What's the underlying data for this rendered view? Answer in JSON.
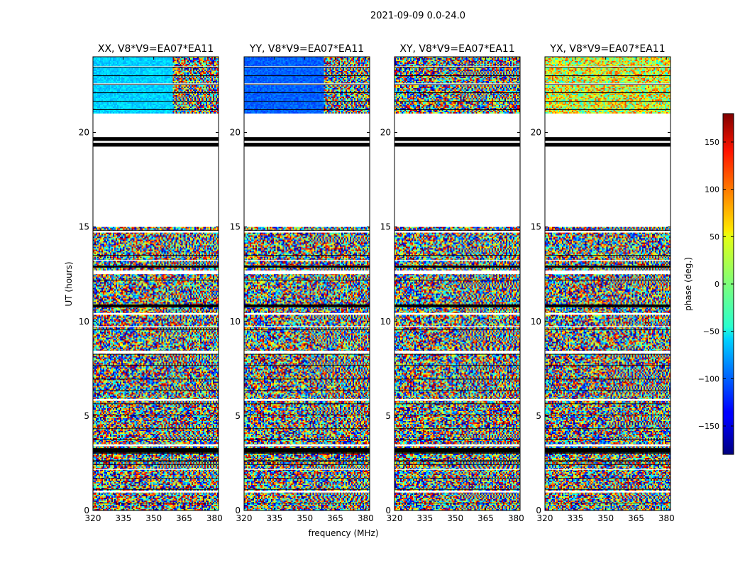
{
  "chart_data": {
    "type": "heatmap",
    "suptitle": "2021-09-09 0.0-24.0",
    "xlabel": "frequency (MHz)",
    "ylabel": "UT (hours)",
    "xlim": [
      320,
      382
    ],
    "ylim": [
      0,
      24
    ],
    "xticks": [
      320,
      335,
      350,
      365,
      380
    ],
    "yticks": [
      0,
      5,
      10,
      15,
      20
    ],
    "panels": [
      {
        "title": "XX, V8*V9=EA07*EA11",
        "pol": "XX"
      },
      {
        "title": "YY, V8*V9=EA07*EA11",
        "pol": "YY"
      },
      {
        "title": "XY, V8*V9=EA07*EA11",
        "pol": "XY"
      },
      {
        "title": "YX, V8*V9=EA07*EA11",
        "pol": "YX"
      }
    ],
    "colorbar": {
      "label": "phase (deg.)",
      "min": -180,
      "max": 180,
      "ticks": [
        150,
        100,
        50,
        0,
        -50,
        -100,
        -150
      ],
      "tick_labels": [
        "150",
        "100",
        "50",
        "0",
        "−50",
        "−100",
        "−150"
      ],
      "colormap": "jet"
    },
    "flagged_ut_hours": [
      [
        15.0,
        21.0
      ],
      [
        19.2,
        19.8
      ]
    ],
    "solid_bands_ut_hours": [
      [
        19.25,
        19.45
      ],
      [
        19.55,
        19.75
      ],
      [
        3.05,
        3.3
      ],
      [
        10.75,
        10.9
      ],
      [
        12.85,
        12.95
      ],
      [
        2.6,
        2.65
      ]
    ],
    "white_gap_ut_hours": [
      [
        0.95,
        1.05
      ],
      [
        2.15,
        2.2
      ],
      [
        3.4,
        3.5
      ],
      [
        5.8,
        5.9
      ],
      [
        8.3,
        8.45
      ],
      [
        9.7,
        9.75
      ],
      [
        10.35,
        10.45
      ],
      [
        12.5,
        12.7
      ],
      [
        13.2,
        13.25
      ],
      [
        14.7,
        14.8
      ],
      [
        22.5,
        22.6
      ],
      [
        23.45,
        23.5
      ]
    ]
  }
}
